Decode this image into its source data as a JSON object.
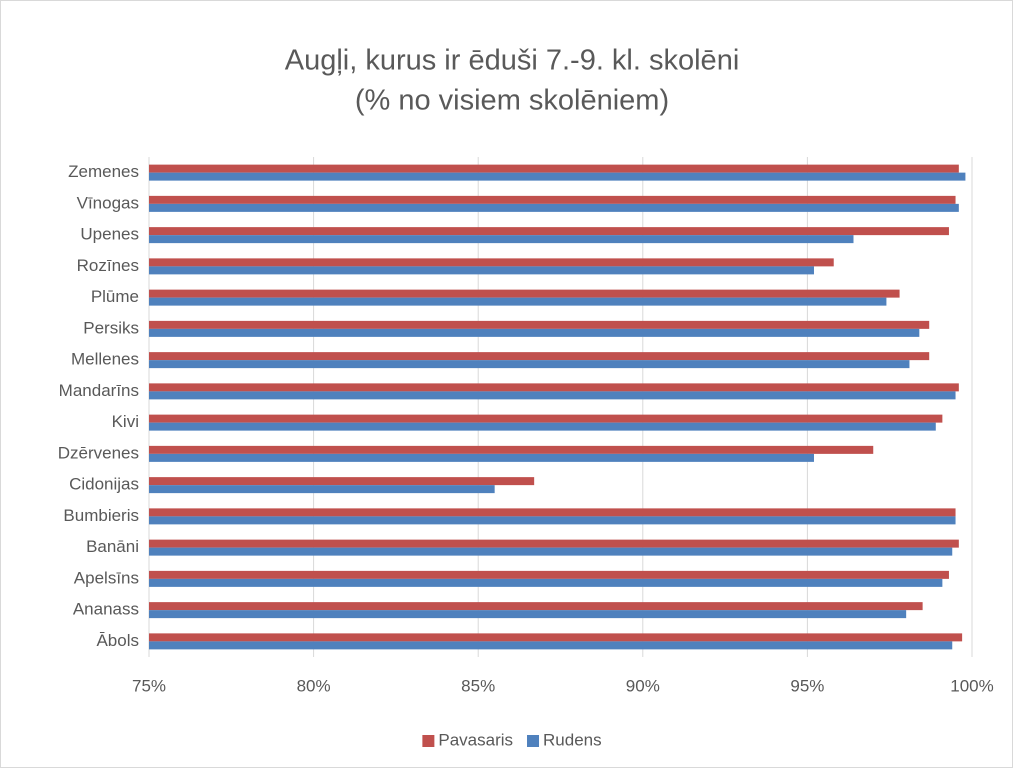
{
  "chart_data": {
    "type": "hbar",
    "title": [
      "Augļi, kurus ir ēduši 7.-9. kl. skolēni",
      "(% no visiem skolēniem)"
    ],
    "categories": [
      "Zemenes",
      "Vīnogas",
      "Upenes",
      "Rozīnes",
      "Plūme",
      "Persiks",
      "Mellenes",
      "Mandarīns",
      "Kivi",
      "Dzērvenes",
      "Cidonijas",
      "Bumbieris",
      "Banāni",
      "Apelsīns",
      "Ananass",
      "Ābols"
    ],
    "series": [
      {
        "name": "Pavasaris",
        "color": "#c0504d",
        "values": [
          99.6,
          99.5,
          99.3,
          95.8,
          97.8,
          98.7,
          98.7,
          99.6,
          99.1,
          97.0,
          86.7,
          99.5,
          99.6,
          99.3,
          98.5,
          99.7
        ]
      },
      {
        "name": "Rudens",
        "color": "#4f81bd",
        "values": [
          99.8,
          99.6,
          96.4,
          95.2,
          97.4,
          98.4,
          98.1,
          99.5,
          98.9,
          95.2,
          85.5,
          99.5,
          99.4,
          99.1,
          98.0,
          99.4
        ]
      }
    ],
    "xlim": [
      75,
      100
    ],
    "xticks": [
      {
        "value": 75,
        "label": "75%"
      },
      {
        "value": 80,
        "label": "80%"
      },
      {
        "value": 85,
        "label": "85%"
      },
      {
        "value": 90,
        "label": "90%"
      },
      {
        "value": 95,
        "label": "95%"
      },
      {
        "value": 100,
        "label": "100%"
      }
    ],
    "grid": true,
    "legend": "bottom"
  }
}
